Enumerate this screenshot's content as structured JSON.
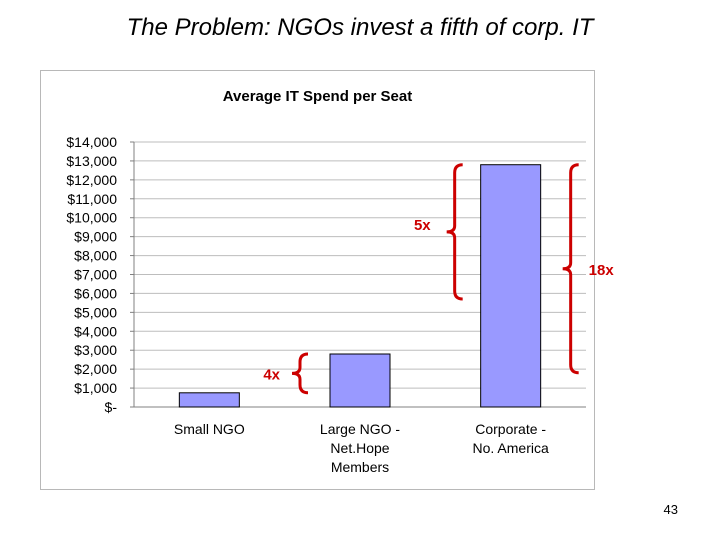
{
  "slide": {
    "title": "The Problem: NGOs invest a fifth of corp. IT",
    "page_number": "43"
  },
  "chart_data": {
    "type": "bar",
    "title": "Average IT Spend per Seat",
    "categories": [
      [
        "Small NGO"
      ],
      [
        "Large NGO -",
        "Net.Hope",
        "Members"
      ],
      [
        "Corporate -",
        "No. America"
      ]
    ],
    "values": [
      750,
      2800,
      12800
    ],
    "ylim": [
      0,
      14000
    ],
    "yticks": [
      {
        "value": 14000,
        "label": "$14,000"
      },
      {
        "value": 13000,
        "label": "$13,000"
      },
      {
        "value": 12000,
        "label": "$12,000"
      },
      {
        "value": 11000,
        "label": "$11,000"
      },
      {
        "value": 10000,
        "label": "$10,000"
      },
      {
        "value": 9000,
        "label": "$9,000"
      },
      {
        "value": 8000,
        "label": "$8,000"
      },
      {
        "value": 7000,
        "label": "$7,000"
      },
      {
        "value": 6000,
        "label": "$6,000"
      },
      {
        "value": 5000,
        "label": "$5,000"
      },
      {
        "value": 4000,
        "label": "$4,000"
      },
      {
        "value": 3000,
        "label": "$3,000"
      },
      {
        "value": 2000,
        "label": "$2,000"
      },
      {
        "value": 1000,
        "label": "$1,000"
      },
      {
        "value": 0,
        "label": "$-"
      }
    ],
    "grid": true,
    "bar_color": "#9999ff",
    "bar_edge_color": "#000000",
    "annotations": [
      {
        "label": "4x",
        "from": 750,
        "to": 2800,
        "bracket_at": "Large NGO"
      },
      {
        "label": "5x",
        "from": 2800,
        "to": 12800,
        "bracket_at": "Corporate left"
      },
      {
        "label": "18x",
        "from": 750,
        "to": 12800,
        "bracket_at": "Corporate right"
      }
    ],
    "annotation_color": "#cc0000"
  }
}
